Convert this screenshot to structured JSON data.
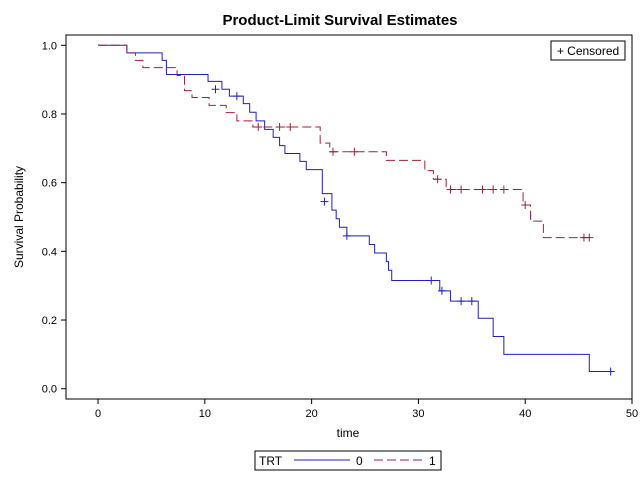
{
  "chart_data": {
    "type": "line",
    "title": "Product-Limit Survival Estimates",
    "xlabel": "time",
    "ylabel": "Survival Probability",
    "xlim": [
      -3,
      50
    ],
    "ylim": [
      -0.03,
      1.03
    ],
    "xticks": [
      0,
      10,
      20,
      30,
      40,
      50
    ],
    "yticks": [
      "0.0",
      "0.2",
      "0.4",
      "0.6",
      "0.8",
      "1.0"
    ],
    "grid": false,
    "censor_legend": "+ Censored",
    "legend": {
      "title": "TRT",
      "placement": "bottom-center"
    },
    "series": [
      {
        "name": "0",
        "color": "#1f1fbf",
        "dash": "solid",
        "steps": [
          [
            0,
            1.0
          ],
          [
            2.7,
            0.978
          ],
          [
            6,
            0.956
          ],
          [
            6.4,
            0.915
          ],
          [
            10,
            0.915
          ],
          [
            10.3,
            0.895
          ],
          [
            11.6,
            0.872
          ],
          [
            12.3,
            0.852
          ],
          [
            13.6,
            0.83
          ],
          [
            14.2,
            0.805
          ],
          [
            14.8,
            0.78
          ],
          [
            15.6,
            0.755
          ],
          [
            16.4,
            0.732
          ],
          [
            17,
            0.708
          ],
          [
            17.5,
            0.685
          ],
          [
            18.9,
            0.662
          ],
          [
            19.5,
            0.638
          ],
          [
            21,
            0.568
          ],
          [
            21.9,
            0.52
          ],
          [
            22.3,
            0.495
          ],
          [
            22.6,
            0.47
          ],
          [
            23.3,
            0.445
          ],
          [
            25.4,
            0.42
          ],
          [
            25.9,
            0.395
          ],
          [
            27,
            0.37
          ],
          [
            27.2,
            0.345
          ],
          [
            27.5,
            0.315
          ],
          [
            32,
            0.285
          ],
          [
            33,
            0.255
          ],
          [
            35.6,
            0.205
          ],
          [
            37,
            0.152
          ],
          [
            38,
            0.1
          ],
          [
            46,
            0.05
          ],
          [
            48,
            0.05
          ]
        ],
        "censored": [
          [
            11,
            0.872
          ],
          [
            13,
            0.852
          ],
          [
            21.2,
            0.545
          ],
          [
            23.3,
            0.445
          ],
          [
            31.2,
            0.315
          ],
          [
            32.2,
            0.285
          ],
          [
            34,
            0.255
          ],
          [
            35,
            0.255
          ],
          [
            48,
            0.05
          ]
        ]
      },
      {
        "name": "1",
        "color": "#a0203a",
        "dash": "dashed",
        "steps": [
          [
            0,
            1.0
          ],
          [
            2.7,
            0.978
          ],
          [
            3.5,
            0.956
          ],
          [
            4.2,
            0.935
          ],
          [
            7.4,
            0.912
          ],
          [
            8.1,
            0.868
          ],
          [
            8.8,
            0.848
          ],
          [
            10.4,
            0.825
          ],
          [
            12,
            0.804
          ],
          [
            13,
            0.78
          ],
          [
            14.5,
            0.762
          ],
          [
            20.8,
            0.715
          ],
          [
            21.7,
            0.69
          ],
          [
            27,
            0.665
          ],
          [
            30.6,
            0.635
          ],
          [
            31.4,
            0.61
          ],
          [
            32.6,
            0.58
          ],
          [
            39.8,
            0.535
          ],
          [
            40.5,
            0.488
          ],
          [
            41.7,
            0.44
          ],
          [
            46,
            0.44
          ]
        ],
        "censored": [
          [
            15,
            0.762
          ],
          [
            17,
            0.762
          ],
          [
            18,
            0.762
          ],
          [
            22,
            0.69
          ],
          [
            24,
            0.69
          ],
          [
            31.8,
            0.61
          ],
          [
            33,
            0.58
          ],
          [
            34,
            0.58
          ],
          [
            36,
            0.58
          ],
          [
            37,
            0.58
          ],
          [
            38,
            0.58
          ],
          [
            40,
            0.535
          ],
          [
            45.5,
            0.44
          ],
          [
            46,
            0.44
          ]
        ]
      }
    ]
  }
}
